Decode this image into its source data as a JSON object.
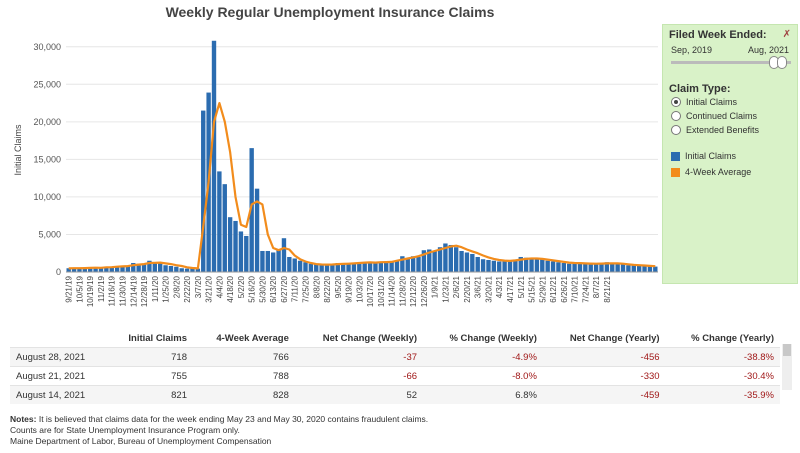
{
  "title": "Weekly Regular Unemployment Insurance Claims",
  "colors": {
    "bar": "#2b6cb0",
    "line": "#f28c1c",
    "panel": "#d9f2c8",
    "negative": "#a01818"
  },
  "chart_data": {
    "type": "bar",
    "title": "Weekly Regular Unemployment Insurance Claims",
    "ylabel": "Initial Claims",
    "xlabel": "",
    "ylim": [
      0,
      32500
    ],
    "yticks": [
      0,
      5000,
      10000,
      15000,
      20000,
      25000,
      30000
    ],
    "ytick_labels": [
      "0",
      "5,000",
      "10,000",
      "15,000",
      "20,000",
      "25,000",
      "30,000"
    ],
    "xtick_labels": [
      "9/21/19",
      "10/5/19",
      "10/19/19",
      "11/2/19",
      "11/16/19",
      "11/30/19",
      "12/14/19",
      "12/28/19",
      "1/11/20",
      "1/25/20",
      "2/8/20",
      "2/22/20",
      "3/7/20",
      "3/21/20",
      "4/4/20",
      "4/18/20",
      "5/2/20",
      "5/16/20",
      "5/30/20",
      "6/13/20",
      "6/27/20",
      "7/11/20",
      "7/25/20",
      "8/8/20",
      "8/22/20",
      "9/5/20",
      "9/19/20",
      "10/3/20",
      "10/17/20",
      "10/31/20",
      "11/14/20",
      "11/28/20",
      "12/12/20",
      "12/26/20",
      "1/9/21",
      "1/23/21",
      "2/6/21",
      "2/20/21",
      "3/6/21",
      "3/20/21",
      "4/3/21",
      "4/17/21",
      "5/1/21",
      "5/15/21",
      "5/29/21",
      "6/12/21",
      "6/26/21",
      "7/10/21",
      "7/24/21",
      "8/7/21",
      "8/21/21"
    ],
    "grid": true,
    "series": [
      {
        "name": "Initial Claims",
        "type": "bar",
        "values": [
          500,
          500,
          550,
          500,
          600,
          650,
          500,
          700,
          700,
          800,
          750,
          850,
          1200,
          1100,
          1000,
          1500,
          1300,
          1200,
          900,
          800,
          700,
          500,
          450,
          500,
          450,
          21500,
          23900,
          30800,
          13400,
          11700,
          7300,
          6800,
          5400,
          4800,
          16500,
          11100,
          2800,
          2800,
          2600,
          3000,
          4500,
          2000,
          1800,
          1500,
          1300,
          1100,
          1000,
          950,
          950,
          1100,
          1200,
          1050,
          1100,
          1200,
          1300,
          1300,
          1200,
          1300,
          1300,
          1400,
          1300,
          1500,
          2100,
          1800,
          2100,
          2000,
          2900,
          3000,
          2800,
          3300,
          3800,
          3600,
          3300,
          2800,
          2600,
          2400,
          2000,
          1700,
          1600,
          1500,
          1400,
          1500,
          1400,
          1600,
          2000,
          1900,
          1800,
          1800,
          1700,
          1500,
          1400,
          1300,
          1200,
          1100,
          1100,
          1200,
          1100,
          1100,
          1000,
          1100,
          1300,
          1100,
          1200,
          1000,
          900,
          900,
          850,
          800,
          750,
          720
        ]
      },
      {
        "name": "4-Week Average",
        "type": "line",
        "values": [
          480,
          500,
          510,
          520,
          540,
          570,
          560,
          620,
          640,
          700,
          740,
          780,
          900,
          980,
          1050,
          1200,
          1220,
          1250,
          1150,
          1050,
          900,
          800,
          620,
          530,
          480,
          6000,
          12000,
          20000,
          22500,
          20000,
          16000,
          10000,
          6300,
          6000,
          9000,
          9400,
          9000,
          5000,
          3200,
          2900,
          3200,
          3000,
          2200,
          1700,
          1400,
          1200,
          1050,
          1000,
          980,
          1000,
          1050,
          1080,
          1100,
          1150,
          1200,
          1250,
          1280,
          1250,
          1300,
          1320,
          1350,
          1500,
          1650,
          1800,
          1950,
          2100,
          2350,
          2600,
          2800,
          3000,
          3200,
          3400,
          3500,
          3300,
          3000,
          2750,
          2500,
          2200,
          1950,
          1750,
          1600,
          1520,
          1480,
          1550,
          1650,
          1750,
          1800,
          1800,
          1750,
          1650,
          1550,
          1450,
          1350,
          1250,
          1200,
          1180,
          1150,
          1120,
          1100,
          1120,
          1150,
          1150,
          1150,
          1100,
          1020,
          950,
          900,
          860,
          810,
          766
        ]
      }
    ]
  },
  "panel": {
    "filed_week_label": "Filed Week Ended:",
    "range_start": "Sep, 2019",
    "range_end": "Aug, 2021",
    "claim_type_label": "Claim Type:",
    "claim_types": [
      "Initial Claims",
      "Continued Claims",
      "Extended Benefits"
    ],
    "selected_claim_type": "Initial Claims",
    "legend": [
      {
        "label": "Initial Claims",
        "color": "#2b6cb0"
      },
      {
        "label": "4-Week Average",
        "color": "#f28c1c"
      }
    ]
  },
  "table": {
    "headers": [
      "",
      "Initial Claims",
      "4-Week Average",
      "Net Change (Weekly)",
      "% Change (Weekly)",
      "Net Change (Yearly)",
      "% Change (Yearly)"
    ],
    "rows": [
      [
        "August 28, 2021",
        "718",
        "766",
        "-37",
        "-4.9%",
        "-456",
        "-38.8%"
      ],
      [
        "August 21, 2021",
        "755",
        "788",
        "-66",
        "-8.0%",
        "-330",
        "-30.4%"
      ],
      [
        "August 14, 2021",
        "821",
        "828",
        "52",
        "6.8%",
        "-459",
        "-35.9%"
      ]
    ]
  },
  "notes": {
    "label": "Notes:",
    "line1": "It is believed that claims data for the week ending May 23 and May 30, 2020 contains fraudulent claims.",
    "line2": "Counts are for State Unemployment Insurance Program only.",
    "line3": "Maine Department of Labor, Bureau of Unemployment Compensation"
  }
}
